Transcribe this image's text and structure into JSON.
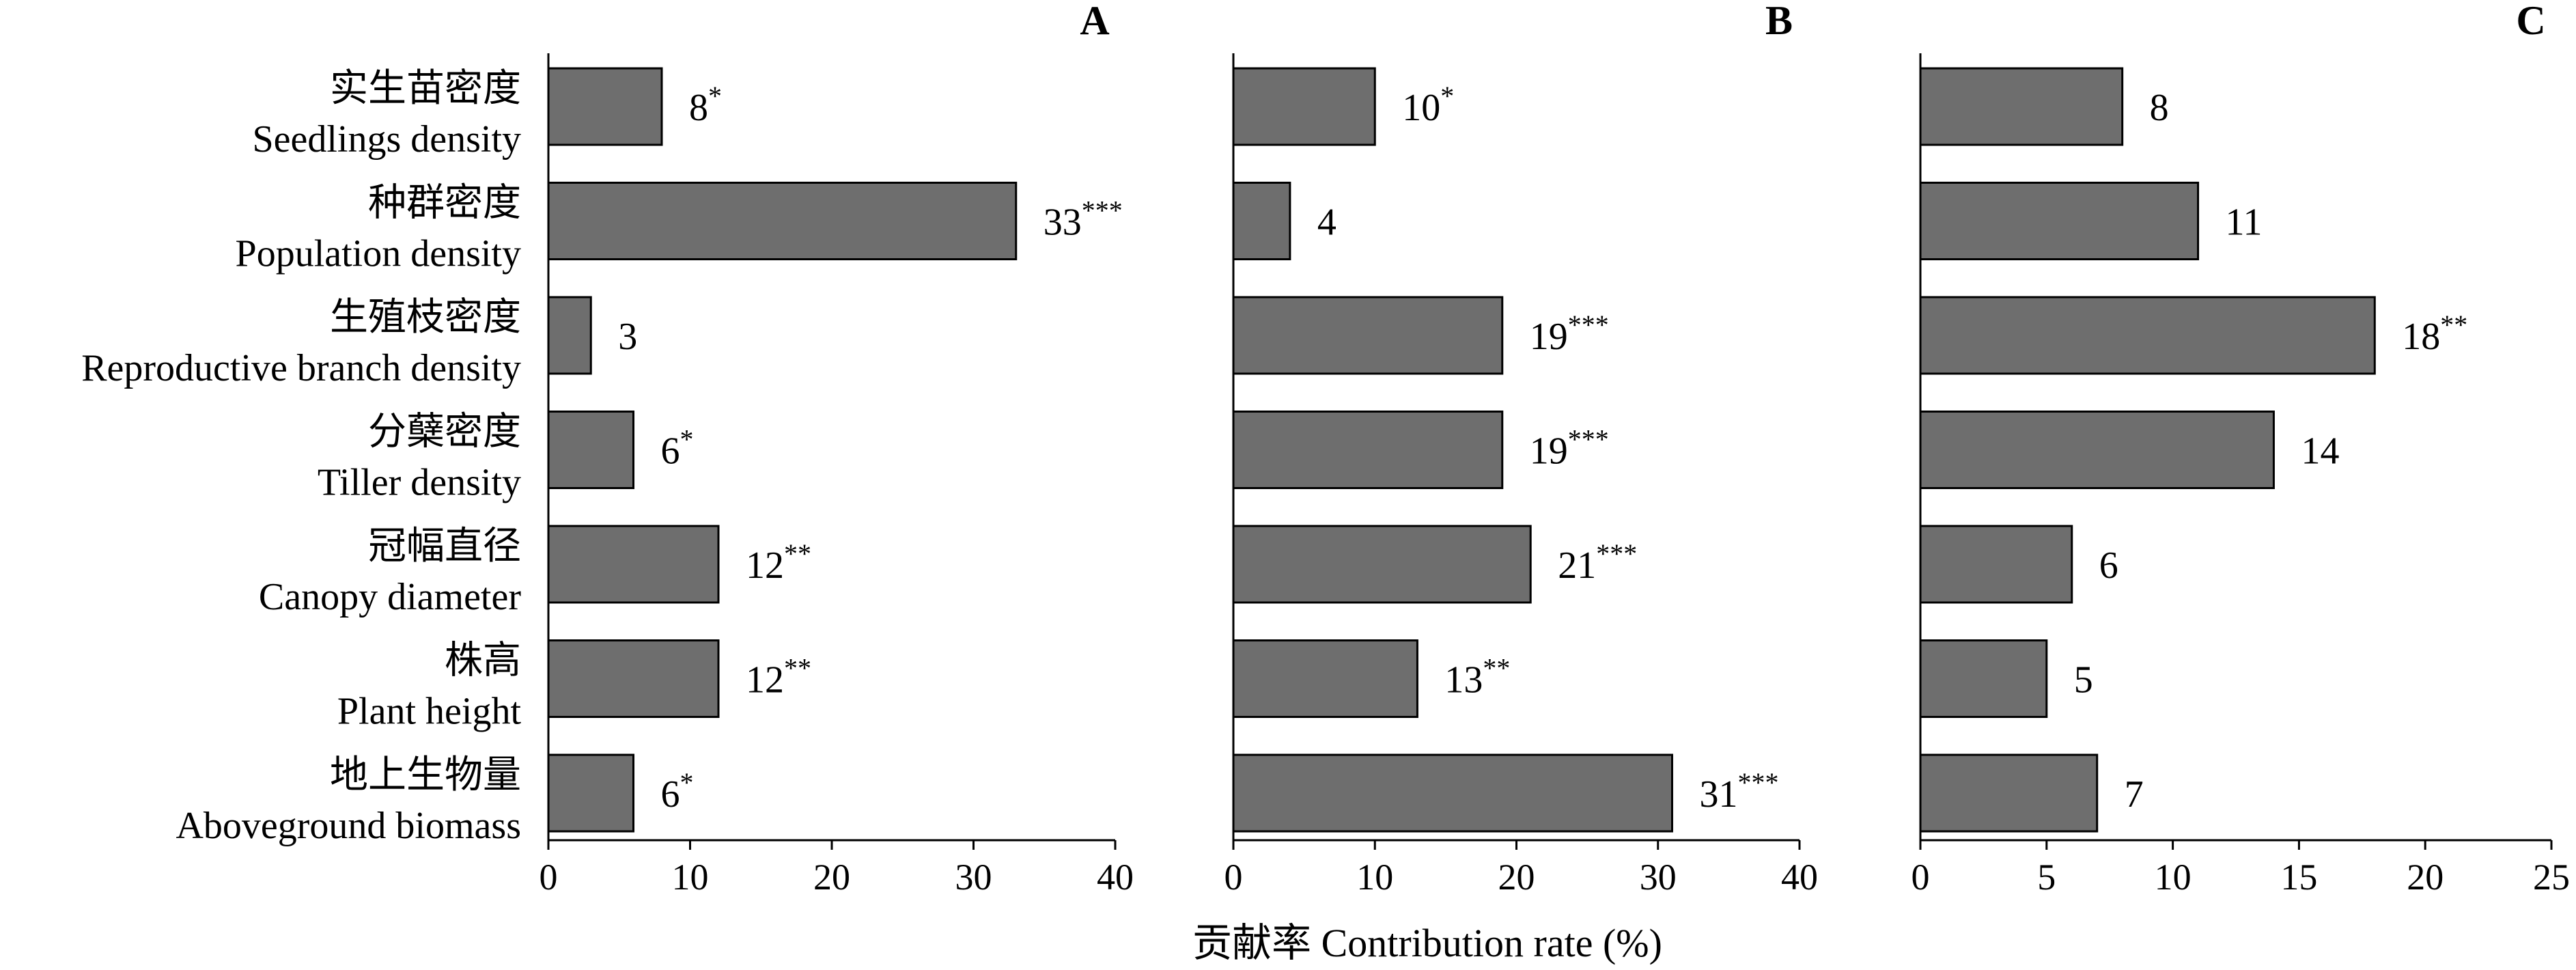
{
  "colors": {
    "bar_fill": "#6e6e6e",
    "bar_stroke": "#000000",
    "text": "#000000"
  },
  "categories": [
    {
      "cn": "实生苗密度",
      "en": "Seedlings density"
    },
    {
      "cn": "种群密度",
      "en": "Population density"
    },
    {
      "cn": "生殖枝密度",
      "en": "Reproductive branch density"
    },
    {
      "cn": "分蘖密度",
      "en": "Tiller density"
    },
    {
      "cn": "冠幅直径",
      "en": "Canopy diameter"
    },
    {
      "cn": "株高",
      "en": "Plant height"
    },
    {
      "cn": "地上生物量",
      "en": "Aboveground biomass"
    }
  ],
  "xlabel": "贡献率 Contribution rate (%)",
  "chart_data": [
    {
      "type": "bar",
      "orientation": "horizontal",
      "panel": "A",
      "categories": [
        "Seedlings density",
        "Population density",
        "Reproductive branch density",
        "Tiller density",
        "Canopy diameter",
        "Plant height",
        "Aboveground biomass"
      ],
      "values": [
        8,
        33,
        3,
        6,
        12,
        12,
        6
      ],
      "significance": [
        "*",
        "***",
        "",
        "*",
        "**",
        "**",
        "*"
      ],
      "xlim": [
        0,
        40
      ],
      "xticks": [
        0,
        10,
        20,
        30,
        40
      ]
    },
    {
      "type": "bar",
      "orientation": "horizontal",
      "panel": "B",
      "categories": [
        "Seedlings density",
        "Population density",
        "Reproductive branch density",
        "Tiller density",
        "Canopy diameter",
        "Plant height",
        "Aboveground biomass"
      ],
      "values": [
        10,
        4,
        19,
        19,
        21,
        13,
        31
      ],
      "significance": [
        "*",
        "",
        "***",
        "***",
        "***",
        "**",
        "***"
      ],
      "xlim": [
        0,
        40
      ],
      "xticks": [
        0,
        10,
        20,
        30,
        40
      ]
    },
    {
      "type": "bar",
      "orientation": "horizontal",
      "panel": "C",
      "categories": [
        "Seedlings density",
        "Population density",
        "Reproductive branch density",
        "Tiller density",
        "Canopy diameter",
        "Plant height",
        "Aboveground biomass"
      ],
      "values": [
        8,
        11,
        18,
        14,
        6,
        5,
        7
      ],
      "significance": [
        "",
        "",
        "**",
        "",
        "",
        "",
        ""
      ],
      "xlim": [
        0,
        25
      ],
      "xticks": [
        0,
        5,
        10,
        15,
        20,
        25
      ]
    }
  ]
}
